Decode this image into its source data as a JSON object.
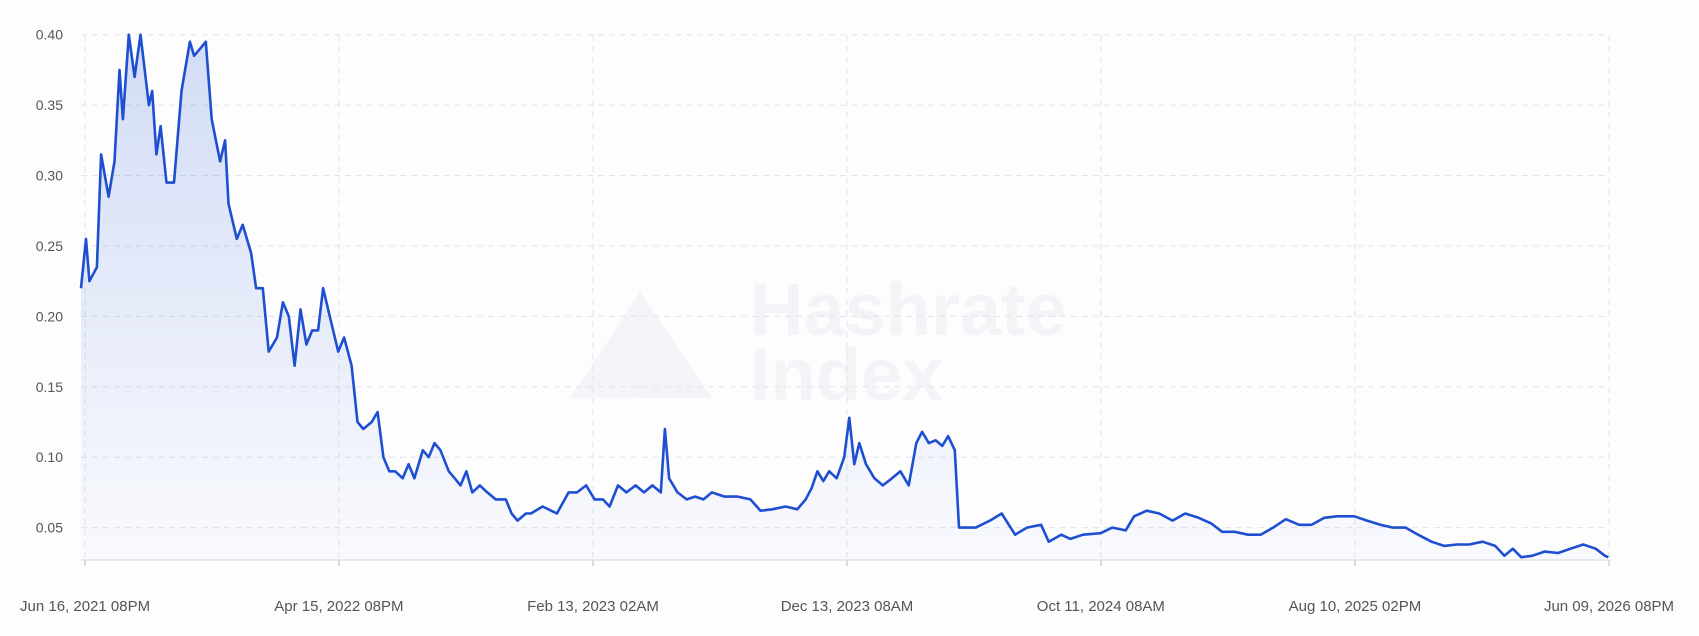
{
  "chart_data": {
    "type": "line",
    "watermark": [
      "Hashrate",
      "Index"
    ],
    "color": "#1f4fd1",
    "grid": true,
    "xlim": [
      "2021-06-12",
      "2026-06-09T20:00"
    ],
    "ylim": [
      0.027,
      0.4
    ],
    "yticks": [
      0.05,
      {
        "value": 0.1,
        "label": "0.10"
      },
      0.15,
      {
        "value": 0.2,
        "label": "0.20"
      },
      0.25,
      {
        "value": 0.3,
        "label": "0.30"
      },
      0.35,
      {
        "value": 0.4,
        "label": "0.40"
      }
    ],
    "xticks": [
      {
        "value": "2021-06-16T20:00",
        "label": "Jun 16, 2021 08PM"
      },
      {
        "value": "2022-04-15T20:00",
        "label": "Apr 15, 2022 08PM"
      },
      {
        "value": "2023-02-13T02:00",
        "label": "Feb 13, 2023 02AM"
      },
      {
        "value": "2023-12-13T08:00",
        "label": "Dec 13, 2023 08AM"
      },
      {
        "value": "2024-10-11T08:00",
        "label": "Oct 11, 2024 08AM"
      },
      {
        "value": "2025-08-10T14:00",
        "label": "Aug 10, 2025 02PM"
      },
      {
        "value": "2026-06-09T20:00",
        "label": "Jun 09, 2026 08PM"
      }
    ],
    "x": [
      "2021-06-12",
      "2021-06-18",
      "2021-06-22",
      "2021-07-01",
      "2021-07-06",
      "2021-07-15",
      "2021-07-22",
      "2021-07-28",
      "2021-08-01",
      "2021-08-08",
      "2021-08-15",
      "2021-08-22",
      "2021-09-01",
      "2021-09-05",
      "2021-09-10",
      "2021-09-15",
      "2021-09-22",
      "2021-10-01",
      "2021-10-10",
      "2021-10-20",
      "2021-10-25",
      "2021-11-01",
      "2021-11-08",
      "2021-11-15",
      "2021-11-25",
      "2021-12-01",
      "2021-12-05",
      "2021-12-15",
      "2021-12-22",
      "2022-01-01",
      "2022-01-07",
      "2022-01-15",
      "2022-01-22",
      "2022-02-01",
      "2022-02-08",
      "2022-02-15",
      "2022-02-22",
      "2022-03-01",
      "2022-03-08",
      "2022-03-15",
      "2022-03-22",
      "2022-03-28",
      "2022-04-05",
      "2022-04-15",
      "2022-04-22",
      "2022-05-01",
      "2022-05-08",
      "2022-05-15",
      "2022-05-25",
      "2022-06-01",
      "2022-06-08",
      "2022-06-15",
      "2022-06-22",
      "2022-07-01",
      "2022-07-08",
      "2022-07-15",
      "2022-07-25",
      "2022-08-01",
      "2022-08-08",
      "2022-08-15",
      "2022-08-25",
      "2022-09-01",
      "2022-09-08",
      "2022-09-15",
      "2022-09-22",
      "2022-10-01",
      "2022-10-10",
      "2022-10-20",
      "2022-11-01",
      "2022-11-08",
      "2022-11-15",
      "2022-11-25",
      "2022-12-01",
      "2022-12-15",
      "2023-01-01",
      "2023-01-15",
      "2023-01-25",
      "2023-02-05",
      "2023-02-15",
      "2023-02-25",
      "2023-03-05",
      "2023-03-15",
      "2023-03-25",
      "2023-04-05",
      "2023-04-15",
      "2023-04-25",
      "2023-05-05",
      "2023-05-10",
      "2023-05-15",
      "2023-05-25",
      "2023-06-05",
      "2023-06-15",
      "2023-06-25",
      "2023-07-05",
      "2023-07-20",
      "2023-08-05",
      "2023-08-20",
      "2023-09-01",
      "2023-09-15",
      "2023-10-01",
      "2023-10-15",
      "2023-10-25",
      "2023-11-01",
      "2023-11-08",
      "2023-11-15",
      "2023-11-22",
      "2023-12-01",
      "2023-12-10",
      "2023-12-16",
      "2023-12-22",
      "2023-12-28",
      "2024-01-05",
      "2024-01-15",
      "2024-01-25",
      "2024-02-05",
      "2024-02-15",
      "2024-02-25",
      "2024-03-05",
      "2024-03-12",
      "2024-03-20",
      "2024-03-28",
      "2024-04-05",
      "2024-04-12",
      "2024-04-20",
      "2024-04-25",
      "2024-05-05",
      "2024-05-15",
      "2024-06-01",
      "2024-06-15",
      "2024-07-01",
      "2024-07-15",
      "2024-08-01",
      "2024-08-10",
      "2024-08-25",
      "2024-09-05",
      "2024-09-20",
      "2024-10-11",
      "2024-10-25",
      "2024-11-10",
      "2024-11-20",
      "2024-12-05",
      "2024-12-20",
      "2025-01-05",
      "2025-01-20",
      "2025-02-05",
      "2025-02-20",
      "2025-03-05",
      "2025-03-20",
      "2025-04-05",
      "2025-04-20",
      "2025-05-05",
      "2025-05-20",
      "2025-06-05",
      "2025-06-20",
      "2025-07-05",
      "2025-07-20",
      "2025-08-10",
      "2025-08-25",
      "2025-09-10",
      "2025-09-25",
      "2025-10-10",
      "2025-10-25",
      "2025-11-10",
      "2025-11-25",
      "2025-12-10",
      "2025-12-25",
      "2026-01-10",
      "2026-01-25",
      "2026-02-05",
      "2026-02-15",
      "2026-02-25",
      "2026-03-10",
      "2026-03-25",
      "2026-04-10",
      "2026-04-25",
      "2026-05-10",
      "2026-05-25",
      "2026-06-05",
      "2026-06-09"
    ],
    "values": [
      0.22,
      0.255,
      0.225,
      0.235,
      0.315,
      0.285,
      0.31,
      0.375,
      0.34,
      0.4,
      0.37,
      0.4,
      0.35,
      0.36,
      0.315,
      0.335,
      0.295,
      0.295,
      0.36,
      0.395,
      0.385,
      0.39,
      0.395,
      0.34,
      0.31,
      0.325,
      0.28,
      0.255,
      0.265,
      0.245,
      0.22,
      0.22,
      0.175,
      0.185,
      0.21,
      0.2,
      0.165,
      0.205,
      0.18,
      0.19,
      0.19,
      0.22,
      0.2,
      0.175,
      0.185,
      0.165,
      0.125,
      0.12,
      0.125,
      0.132,
      0.1,
      0.09,
      0.09,
      0.085,
      0.095,
      0.085,
      0.105,
      0.1,
      0.11,
      0.105,
      0.09,
      0.085,
      0.08,
      0.09,
      0.075,
      0.08,
      0.075,
      0.07,
      0.07,
      0.06,
      0.055,
      0.06,
      0.06,
      0.065,
      0.06,
      0.075,
      0.075,
      0.08,
      0.07,
      0.07,
      0.065,
      0.08,
      0.075,
      0.08,
      0.075,
      0.08,
      0.075,
      0.12,
      0.085,
      0.075,
      0.07,
      0.072,
      0.07,
      0.075,
      0.072,
      0.072,
      0.07,
      0.062,
      0.063,
      0.065,
      0.063,
      0.07,
      0.078,
      0.09,
      0.083,
      0.09,
      0.085,
      0.1,
      0.128,
      0.095,
      0.11,
      0.095,
      0.085,
      0.08,
      0.085,
      0.09,
      0.08,
      0.11,
      0.118,
      0.11,
      0.112,
      0.108,
      0.115,
      0.105,
      0.05,
      0.05,
      0.05,
      0.055,
      0.06,
      0.045,
      0.05,
      0.052,
      0.04,
      0.045,
      0.042,
      0.045,
      0.046,
      0.05,
      0.048,
      0.058,
      0.062,
      0.06,
      0.055,
      0.06,
      0.057,
      0.053,
      0.047,
      0.047,
      0.045,
      0.045,
      0.05,
      0.056,
      0.052,
      0.052,
      0.057,
      0.058,
      0.058,
      0.055,
      0.052,
      0.05,
      0.05,
      0.045,
      0.04,
      0.037,
      0.038,
      0.038,
      0.04,
      0.037,
      0.03,
      0.035,
      0.029,
      0.03,
      0.033,
      0.032,
      0.035,
      0.038,
      0.035,
      0.03,
      0.029
    ]
  }
}
